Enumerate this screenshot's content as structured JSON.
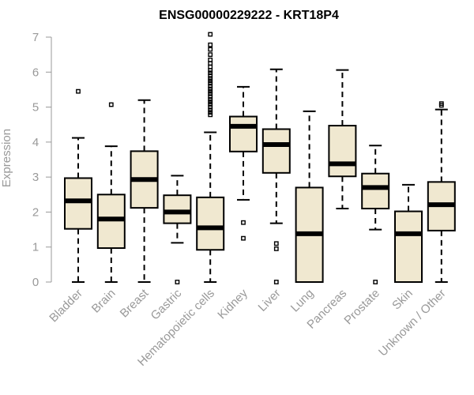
{
  "chart_data": {
    "type": "boxplot",
    "title": "ENSG00000229222 - KRT18P4",
    "xlabel": "",
    "ylabel": "Expression",
    "ylim": [
      0,
      7
    ],
    "yticks": [
      0,
      1,
      2,
      3,
      4,
      5,
      6,
      7
    ],
    "categories": [
      "Bladder",
      "Brain",
      "Breast",
      "Gastric",
      "Hematopoietic cells",
      "Kidney",
      "Liver",
      "Lung",
      "Pancreas",
      "Prostate",
      "Skin",
      "Unknown / Other"
    ],
    "boxes": [
      {
        "name": "Bladder",
        "whisker_low": 0,
        "q1": 1.52,
        "median": 2.32,
        "q3": 2.97,
        "whisker_high": 4.12,
        "outliers": [
          5.45
        ]
      },
      {
        "name": "Brain",
        "whisker_low": 0,
        "q1": 0.97,
        "median": 1.8,
        "q3": 2.5,
        "whisker_high": 3.88,
        "outliers": [
          5.07
        ]
      },
      {
        "name": "Breast",
        "whisker_low": 0,
        "q1": 2.12,
        "median": 2.93,
        "q3": 3.74,
        "whisker_high": 5.2,
        "outliers": []
      },
      {
        "name": "Gastric",
        "whisker_low": 1.12,
        "q1": 1.68,
        "median": 2.0,
        "q3": 2.48,
        "whisker_high": 3.04,
        "outliers": [
          0
        ]
      },
      {
        "name": "Hematopoietic cells",
        "whisker_low": 0,
        "q1": 0.92,
        "median": 1.55,
        "q3": 2.42,
        "whisker_high": 4.28,
        "outliers": [
          4.78,
          4.85,
          4.92,
          5.0,
          5.08,
          5.15,
          5.22,
          5.3,
          5.38,
          5.45,
          5.52,
          5.6,
          5.68,
          5.75,
          5.82,
          5.9,
          5.98,
          6.05,
          6.15,
          6.25,
          6.35,
          6.5,
          6.65,
          6.78,
          7.08
        ]
      },
      {
        "name": "Kidney",
        "whisker_low": 2.35,
        "q1": 3.73,
        "median": 4.45,
        "q3": 4.73,
        "whisker_high": 5.58,
        "outliers": [
          1.7,
          1.25
        ]
      },
      {
        "name": "Liver",
        "whisker_low": 1.68,
        "q1": 3.12,
        "median": 3.93,
        "q3": 4.37,
        "whisker_high": 6.08,
        "outliers": [
          1.1,
          0.95,
          0.0
        ]
      },
      {
        "name": "Lung",
        "whisker_low": 0,
        "q1": 0,
        "median": 1.38,
        "q3": 2.7,
        "whisker_high": 4.88,
        "outliers": []
      },
      {
        "name": "Pancreas",
        "whisker_low": 2.1,
        "q1": 3.02,
        "median": 3.38,
        "q3": 4.47,
        "whisker_high": 6.06,
        "outliers": []
      },
      {
        "name": "Prostate",
        "whisker_low": 1.5,
        "q1": 2.1,
        "median": 2.7,
        "q3": 3.1,
        "whisker_high": 3.9,
        "outliers": [
          0
        ]
      },
      {
        "name": "Skin",
        "whisker_low": 0,
        "q1": 0,
        "median": 1.38,
        "q3": 2.02,
        "whisker_high": 2.78,
        "outliers": []
      },
      {
        "name": "Unknown / Other",
        "whisker_low": 0,
        "q1": 1.47,
        "median": 2.21,
        "q3": 2.86,
        "whisker_high": 4.93,
        "outliers": [
          5.05,
          5.1
        ]
      }
    ],
    "box_fill": "#f0e8d0",
    "box_stroke": "#000000",
    "axis_color": "#999999"
  }
}
